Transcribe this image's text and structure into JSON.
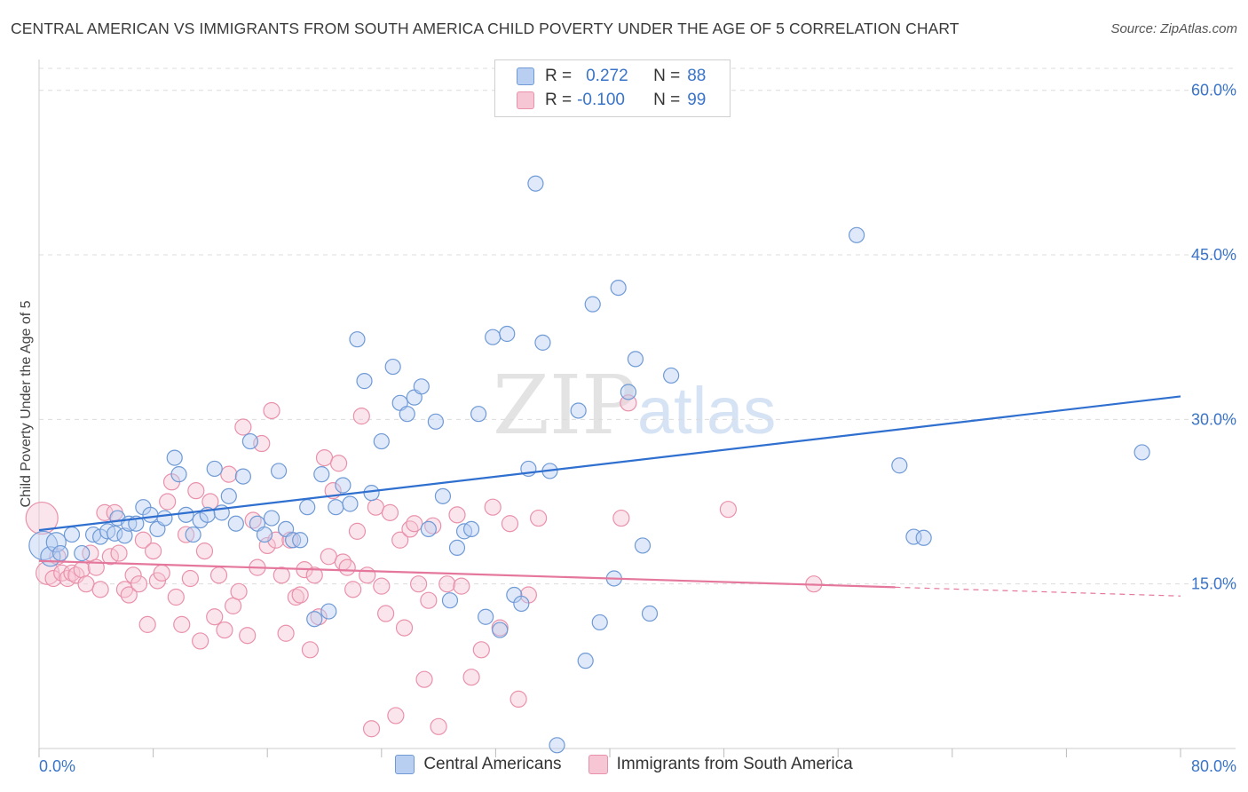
{
  "title": "CENTRAL AMERICAN VS IMMIGRANTS FROM SOUTH AMERICA CHILD POVERTY UNDER THE AGE OF 5 CORRELATION CHART",
  "source": "Source: ZipAtlas.com",
  "watermark": {
    "bold": "ZIP",
    "light": "atlas"
  },
  "legend": {
    "rows": [
      {
        "r_label": "R =",
        "r_value": "0.272",
        "n_label": "N =",
        "n_value": "88"
      },
      {
        "r_label": "R =",
        "r_value": "-0.100",
        "n_label": "N =",
        "n_value": "99"
      }
    ]
  },
  "colors": {
    "blue_fill": "#b8cff1",
    "blue_stroke": "#6f9ad6",
    "blue_line": "#2f6fcf",
    "pink_fill": "#f7c6d4",
    "pink_stroke": "#e991ab",
    "pink_line": "#e4779b",
    "axis_text": "#3a74c8",
    "grid": "#dcdcdc"
  },
  "chart_data": {
    "type": "scatter",
    "title": "CENTRAL AMERICAN VS IMMIGRANTS FROM SOUTH AMERICA CHILD POVERTY UNDER THE AGE OF 5 CORRELATION CHART",
    "xlabel": "",
    "ylabel": "Child Poverty Under the Age of 5",
    "xlim": [
      0,
      80
    ],
    "ylim": [
      0,
      62
    ],
    "x_tick_labels": [
      "0.0%",
      "80.0%"
    ],
    "y_ticks": [
      15,
      30,
      45,
      60
    ],
    "y_tick_labels": [
      "15.0%",
      "30.0%",
      "45.0%",
      "60.0%"
    ],
    "grid": true,
    "legend_position": "top-center",
    "series": [
      {
        "name": "Central Americans",
        "r": 0.272,
        "n": 88,
        "trend": {
          "x": [
            0,
            80
          ],
          "y": [
            19.9,
            32.1
          ],
          "dashed_from": null
        },
        "points": [
          [
            0.3,
            18.5
          ],
          [
            0.8,
            17.5
          ],
          [
            1.2,
            18.8
          ],
          [
            1.5,
            17.8
          ],
          [
            2.3,
            19.5
          ],
          [
            3.0,
            17.8
          ],
          [
            3.8,
            19.5
          ],
          [
            4.3,
            19.3
          ],
          [
            4.8,
            19.8
          ],
          [
            5.3,
            19.6
          ],
          [
            5.5,
            21.0
          ],
          [
            6.0,
            19.4
          ],
          [
            6.3,
            20.5
          ],
          [
            6.8,
            20.5
          ],
          [
            7.3,
            22.0
          ],
          [
            7.8,
            21.3
          ],
          [
            8.3,
            20.0
          ],
          [
            8.8,
            21.0
          ],
          [
            9.5,
            26.5
          ],
          [
            9.8,
            25.0
          ],
          [
            10.3,
            21.3
          ],
          [
            10.8,
            19.5
          ],
          [
            11.3,
            20.8
          ],
          [
            11.8,
            21.3
          ],
          [
            12.3,
            25.5
          ],
          [
            12.8,
            21.5
          ],
          [
            13.3,
            23.0
          ],
          [
            13.8,
            20.5
          ],
          [
            14.3,
            24.8
          ],
          [
            14.8,
            28.0
          ],
          [
            15.3,
            20.5
          ],
          [
            15.8,
            19.5
          ],
          [
            16.3,
            21.0
          ],
          [
            16.8,
            25.3
          ],
          [
            17.3,
            20.0
          ],
          [
            17.8,
            19.0
          ],
          [
            18.3,
            19.0
          ],
          [
            18.8,
            22.0
          ],
          [
            19.3,
            11.8
          ],
          [
            19.8,
            25.0
          ],
          [
            20.3,
            12.5
          ],
          [
            20.8,
            22.0
          ],
          [
            21.3,
            24.0
          ],
          [
            21.8,
            22.3
          ],
          [
            22.3,
            37.3
          ],
          [
            22.8,
            33.5
          ],
          [
            23.3,
            23.3
          ],
          [
            24.0,
            28.0
          ],
          [
            24.8,
            34.8
          ],
          [
            25.3,
            31.5
          ],
          [
            25.8,
            30.5
          ],
          [
            26.3,
            32.0
          ],
          [
            26.8,
            33.0
          ],
          [
            27.3,
            20.0
          ],
          [
            27.8,
            29.8
          ],
          [
            28.3,
            23.0
          ],
          [
            28.8,
            13.5
          ],
          [
            29.3,
            18.3
          ],
          [
            29.8,
            19.8
          ],
          [
            30.3,
            20.0
          ],
          [
            30.8,
            30.5
          ],
          [
            31.3,
            12.0
          ],
          [
            31.8,
            37.5
          ],
          [
            32.3,
            10.8
          ],
          [
            32.8,
            37.8
          ],
          [
            33.3,
            14.0
          ],
          [
            33.8,
            13.2
          ],
          [
            34.3,
            25.5
          ],
          [
            34.8,
            51.5
          ],
          [
            35.3,
            37.0
          ],
          [
            35.8,
            25.3
          ],
          [
            36.3,
            0.3
          ],
          [
            37.8,
            30.8
          ],
          [
            38.3,
            8.0
          ],
          [
            38.8,
            40.5
          ],
          [
            39.3,
            11.5
          ],
          [
            40.3,
            15.5
          ],
          [
            40.6,
            42.0
          ],
          [
            41.3,
            32.5
          ],
          [
            41.8,
            35.5
          ],
          [
            42.3,
            18.5
          ],
          [
            42.8,
            12.3
          ],
          [
            44.3,
            34.0
          ],
          [
            57.3,
            46.8
          ],
          [
            60.3,
            25.8
          ],
          [
            61.3,
            19.3
          ],
          [
            77.3,
            27.0
          ],
          [
            62.0,
            19.2
          ]
        ]
      },
      {
        "name": "Immigrants from South America",
        "r": -0.1,
        "n": 99,
        "trend": {
          "x": [
            0,
            80
          ],
          "y": [
            17.1,
            13.9
          ],
          "dashed_from": 60
        },
        "points": [
          [
            0.2,
            21.0
          ],
          [
            0.6,
            16.0
          ],
          [
            1.0,
            15.5
          ],
          [
            1.3,
            17.5
          ],
          [
            1.6,
            16.0
          ],
          [
            2.0,
            15.5
          ],
          [
            2.3,
            16.0
          ],
          [
            2.6,
            15.8
          ],
          [
            3.0,
            16.3
          ],
          [
            3.3,
            15.0
          ],
          [
            3.6,
            17.8
          ],
          [
            4.0,
            16.5
          ],
          [
            4.3,
            14.5
          ],
          [
            4.6,
            21.5
          ],
          [
            5.0,
            17.5
          ],
          [
            5.3,
            21.5
          ],
          [
            5.6,
            17.8
          ],
          [
            6.0,
            14.5
          ],
          [
            6.3,
            14.0
          ],
          [
            6.6,
            15.8
          ],
          [
            7.0,
            15.0
          ],
          [
            7.3,
            19.0
          ],
          [
            7.6,
            11.3
          ],
          [
            8.0,
            18.0
          ],
          [
            8.3,
            15.3
          ],
          [
            8.6,
            16.0
          ],
          [
            9.0,
            22.5
          ],
          [
            9.3,
            24.3
          ],
          [
            9.6,
            13.8
          ],
          [
            10.0,
            11.3
          ],
          [
            10.3,
            19.5
          ],
          [
            10.6,
            15.5
          ],
          [
            11.0,
            23.5
          ],
          [
            11.3,
            9.8
          ],
          [
            11.6,
            18.0
          ],
          [
            12.0,
            22.5
          ],
          [
            12.3,
            12.0
          ],
          [
            12.6,
            15.8
          ],
          [
            13.0,
            10.8
          ],
          [
            13.3,
            25.0
          ],
          [
            13.6,
            13.0
          ],
          [
            14.0,
            14.3
          ],
          [
            14.3,
            29.3
          ],
          [
            14.6,
            10.3
          ],
          [
            15.0,
            20.8
          ],
          [
            15.3,
            16.5
          ],
          [
            15.6,
            27.8
          ],
          [
            16.0,
            18.5
          ],
          [
            16.3,
            30.8
          ],
          [
            16.6,
            19.0
          ],
          [
            17.0,
            15.8
          ],
          [
            17.3,
            10.5
          ],
          [
            17.6,
            19.0
          ],
          [
            18.0,
            13.8
          ],
          [
            18.3,
            14.0
          ],
          [
            18.6,
            16.3
          ],
          [
            19.0,
            9.0
          ],
          [
            19.3,
            15.8
          ],
          [
            19.6,
            12.0
          ],
          [
            20.0,
            26.5
          ],
          [
            20.3,
            17.5
          ],
          [
            20.6,
            23.5
          ],
          [
            21.0,
            26.0
          ],
          [
            21.3,
            17.0
          ],
          [
            21.6,
            16.5
          ],
          [
            22.0,
            14.5
          ],
          [
            22.3,
            19.8
          ],
          [
            22.6,
            30.3
          ],
          [
            23.0,
            15.8
          ],
          [
            23.3,
            1.8
          ],
          [
            23.6,
            22.0
          ],
          [
            24.0,
            14.8
          ],
          [
            24.3,
            12.3
          ],
          [
            24.6,
            21.5
          ],
          [
            25.0,
            3.0
          ],
          [
            25.3,
            19.0
          ],
          [
            25.6,
            11.0
          ],
          [
            26.0,
            20.0
          ],
          [
            26.3,
            20.5
          ],
          [
            26.6,
            15.0
          ],
          [
            27.0,
            6.3
          ],
          [
            27.3,
            13.5
          ],
          [
            27.6,
            20.3
          ],
          [
            28.0,
            2.0
          ],
          [
            28.6,
            15.0
          ],
          [
            29.3,
            21.3
          ],
          [
            29.6,
            14.8
          ],
          [
            30.3,
            6.5
          ],
          [
            31.0,
            9.0
          ],
          [
            31.8,
            22.0
          ],
          [
            32.3,
            11.0
          ],
          [
            33.0,
            20.5
          ],
          [
            33.6,
            4.5
          ],
          [
            34.3,
            14.0
          ],
          [
            35.0,
            21.0
          ],
          [
            40.8,
            21.0
          ],
          [
            41.3,
            31.5
          ],
          [
            48.3,
            21.8
          ],
          [
            54.3,
            15.0
          ]
        ]
      }
    ]
  }
}
